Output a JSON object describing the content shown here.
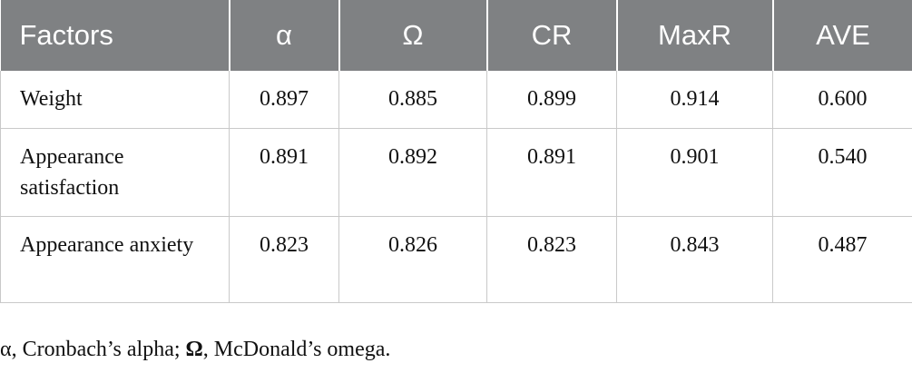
{
  "table": {
    "headers": [
      "Factors",
      "α",
      "Ω",
      "CR",
      "MaxR",
      "AVE"
    ],
    "rows": [
      {
        "factor": "Weight",
        "values": [
          "0.897",
          "0.885",
          "0.899",
          "0.914",
          "0.600"
        ]
      },
      {
        "factor": "Appearance satisfaction",
        "values": [
          "0.891",
          "0.892",
          "0.891",
          "0.901",
          "0.540"
        ]
      },
      {
        "factor": "Appearance anxiety",
        "values": [
          "0.823",
          "0.826",
          "0.823",
          "0.843",
          "0.487"
        ]
      }
    ]
  },
  "footnote": {
    "alpha_symbol": "α",
    "alpha_text": ", Cronbach’s alpha; ",
    "omega_symbol": "Ω",
    "omega_text": ", McDonald’s omega."
  }
}
